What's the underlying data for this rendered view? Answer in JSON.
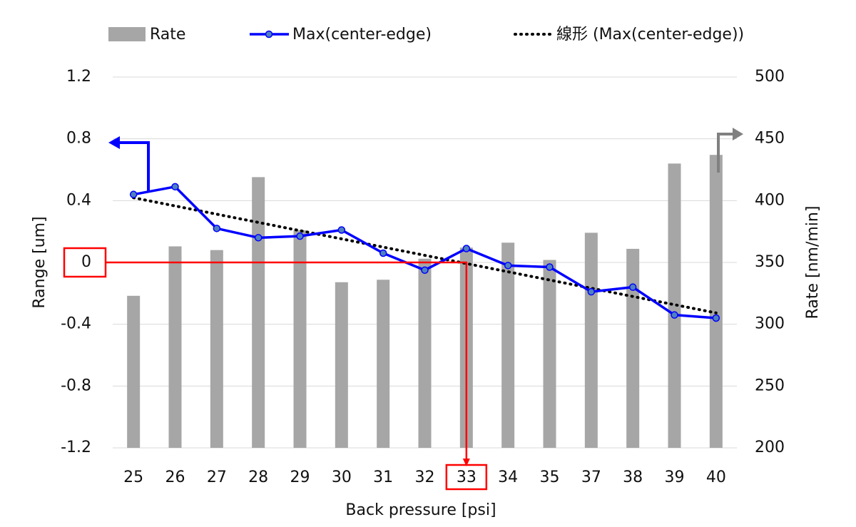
{
  "chart_data": {
    "type": "bar_line",
    "x_label": "Back pressure [psi]",
    "y_label": "Range [um]",
    "y2_label": "Rate [nm/min]",
    "categories": [
      "25",
      "26",
      "27",
      "28",
      "29",
      "30",
      "31",
      "32",
      "33",
      "34",
      "35",
      "37",
      "38",
      "39",
      "40"
    ],
    "series": [
      {
        "name": "Rate",
        "type": "bar",
        "axis": "y2",
        "color": "#a6a6a6",
        "values": [
          323,
          363,
          360,
          419,
          376,
          334,
          336,
          353,
          362,
          366,
          352,
          374,
          361,
          430,
          437
        ]
      },
      {
        "name": "Max(center-edge)",
        "type": "line",
        "color": "#0000ff",
        "values": [
          0.44,
          0.49,
          0.22,
          0.16,
          0.17,
          0.21,
          0.06,
          -0.05,
          0.09,
          -0.02,
          -0.03,
          -0.19,
          -0.16,
          -0.34,
          -0.36
        ]
      }
    ],
    "trendline": {
      "name": "線形 (Max(center-edge))",
      "of_series": 1,
      "kind": "linear",
      "color": "#000000"
    },
    "ylim": [
      -1.2,
      1.2
    ],
    "yticks": [
      -1.2,
      -0.8,
      -0.4,
      0,
      0.4,
      0.8,
      1.2
    ],
    "y2lim": [
      200,
      500
    ],
    "y2ticks": [
      200,
      250,
      300,
      350,
      400,
      450,
      500
    ],
    "grid": true,
    "legend": "top"
  }
}
